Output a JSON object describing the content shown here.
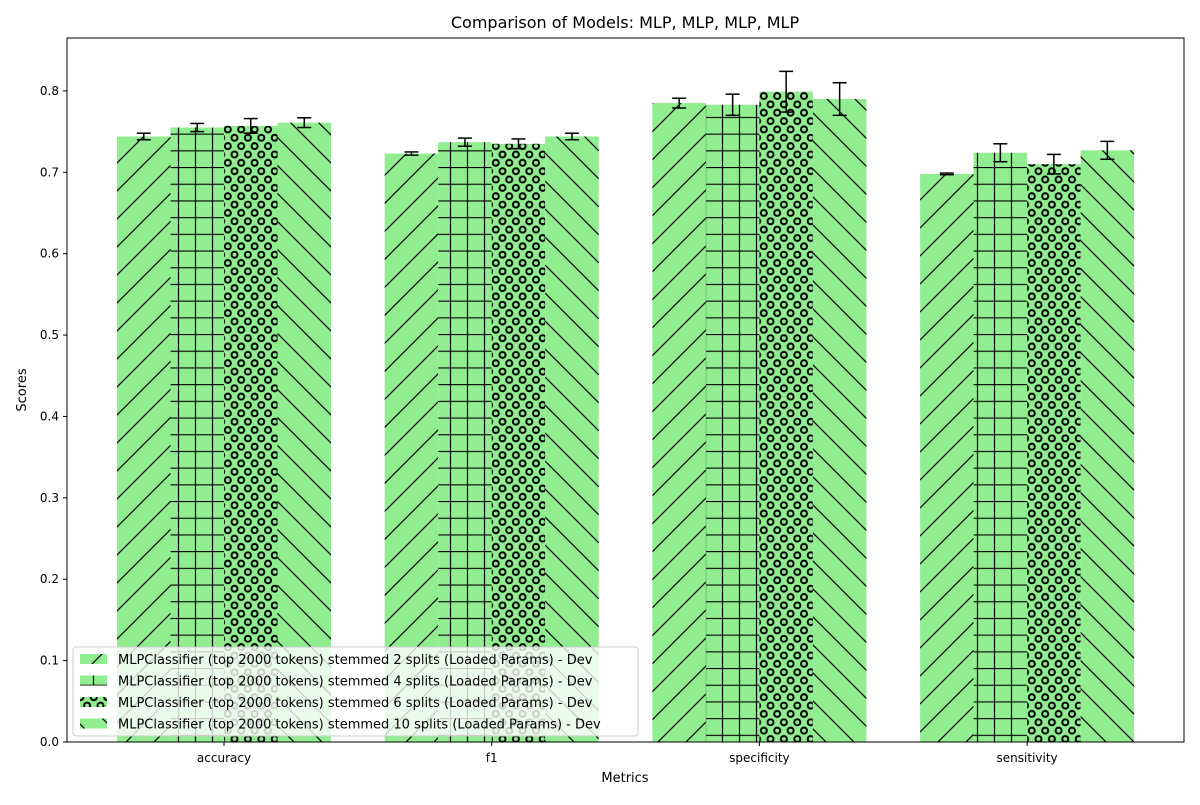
{
  "chart_data": {
    "type": "bar",
    "title": "Comparison of Models: MLP, MLP, MLP, MLP",
    "xlabel": "Metrics",
    "ylabel": "Scores",
    "categories": [
      "accuracy",
      "f1",
      "specificity",
      "sensitivity"
    ],
    "ylim": [
      0,
      0.865
    ],
    "yticks": [
      "0.0",
      "0.1",
      "0.2",
      "0.3",
      "0.4",
      "0.5",
      "0.6",
      "0.7",
      "0.8"
    ],
    "bar_color": "#90ee90",
    "hatch_color": "#000000",
    "grid": false,
    "legend_position": "lower-left",
    "series": [
      {
        "name": "MLPClassifier (top 2000 tokens) stemmed 2 splits (Loaded Params) - Dev",
        "hatch": "diagonal-slash",
        "values": [
          0.744,
          0.723,
          0.785,
          0.698
        ],
        "errors": [
          0.004,
          0.002,
          0.006,
          0.001
        ]
      },
      {
        "name": "MLPClassifier (top 2000 tokens) stemmed 4 splits (Loaded Params) - Dev",
        "hatch": "grid",
        "values": [
          0.755,
          0.737,
          0.783,
          0.724
        ],
        "errors": [
          0.005,
          0.005,
          0.013,
          0.011
        ]
      },
      {
        "name": "MLPClassifier (top 2000 tokens) stemmed 6 splits (Loaded Params) - Dev",
        "hatch": "circles",
        "values": [
          0.757,
          0.735,
          0.799,
          0.71
        ],
        "errors": [
          0.009,
          0.006,
          0.025,
          0.012
        ]
      },
      {
        "name": "MLPClassifier (top 2000 tokens) stemmed 10 splits (Loaded Params) - Dev",
        "hatch": "diagonal-backslash",
        "values": [
          0.761,
          0.744,
          0.79,
          0.727
        ],
        "errors": [
          0.006,
          0.004,
          0.02,
          0.011
        ]
      }
    ]
  }
}
